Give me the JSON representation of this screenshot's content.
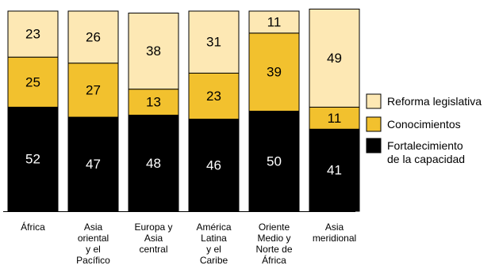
{
  "chart_data": {
    "type": "bar",
    "stacked": true,
    "normalized_percent": true,
    "categories": [
      [
        "África"
      ],
      [
        "Asia",
        "oriental",
        "y el",
        "Pacífico"
      ],
      [
        "Europa y",
        "Asia",
        "central"
      ],
      [
        "América",
        "Latina",
        "y el",
        "Caribe"
      ],
      [
        "Oriente",
        "Medio y",
        "Norte de",
        "África"
      ],
      [
        "Asia",
        "meridional"
      ]
    ],
    "series": [
      {
        "name": "Fortalecimiento de la capacidad",
        "legend_lines": [
          "Fortalecimiento",
          "de la capacidad"
        ],
        "color": "#000000",
        "text_color": "#ffffff",
        "values": [
          52,
          47,
          48,
          46,
          50,
          41
        ]
      },
      {
        "name": "Conocimientos",
        "legend_lines": [
          "Conocimientos"
        ],
        "color": "#f2c12e",
        "text_color": "#000000",
        "values": [
          25,
          27,
          13,
          23,
          39,
          11
        ]
      },
      {
        "name": "Reforma legislativa",
        "legend_lines": [
          "Reforma legislativa"
        ],
        "color": "#fde8b4",
        "text_color": "#000000",
        "values": [
          23,
          26,
          38,
          31,
          11,
          49
        ]
      }
    ],
    "legend_order": [
      2,
      1,
      0
    ],
    "legend_position": "right",
    "ylim": [
      0,
      100
    ],
    "grid": false
  }
}
